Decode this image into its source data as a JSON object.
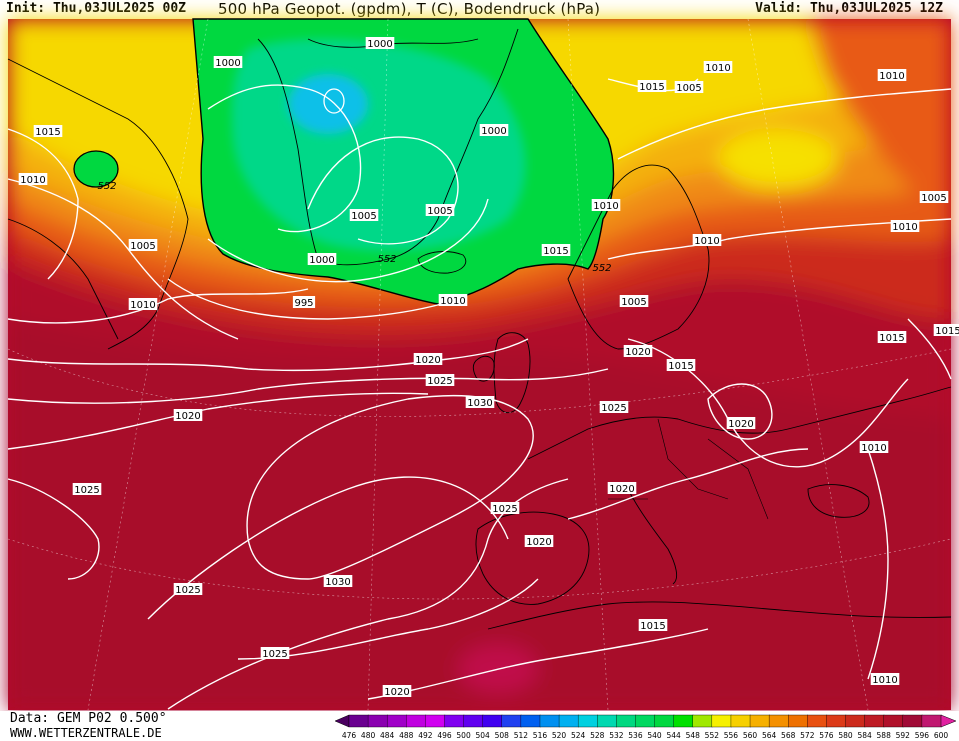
{
  "header": {
    "init": "Init: Thu,03JUL2025 00Z",
    "title": "500 hPa Geopot. (gpdm), T (C), Bodendruck (hPa)",
    "valid": "Valid: Thu,03JUL2025 12Z"
  },
  "footer": {
    "data_source": "Data: GEM P02 0.500°",
    "website": "WWW.WETTERZENTRALE.DE"
  },
  "colors": {
    "high": "#b0102a",
    "deep_high": "#c0104a",
    "mid_red": "#d23b1c",
    "orange": "#e8701a",
    "light_orange": "#f4a012",
    "yellow": "#f6e800",
    "green": "#00d83a",
    "teal": "#00d89a",
    "cyan": "#10c0e0",
    "isobar": "#ffffff",
    "coast": "#000000"
  },
  "colorbar": {
    "ticks": [
      "476",
      "480",
      "484",
      "488",
      "492",
      "496",
      "500",
      "504",
      "508",
      "512",
      "516",
      "520",
      "524",
      "528",
      "532",
      "536",
      "540",
      "544",
      "548",
      "552",
      "556",
      "560",
      "564",
      "568",
      "572",
      "576",
      "580",
      "584",
      "588",
      "592",
      "596",
      "600"
    ],
    "colors": [
      "#4a0060",
      "#6a0090",
      "#8a00b0",
      "#a000c8",
      "#c000e0",
      "#d000f0",
      "#8000f0",
      "#6000f0",
      "#4000f0",
      "#2040f0",
      "#0060f0",
      "#0090f0",
      "#00b0f0",
      "#00d0e0",
      "#00d8b0",
      "#00d880",
      "#00d860",
      "#00d840",
      "#00e000",
      "#a0e800",
      "#f6f000",
      "#f6d000",
      "#f6b000",
      "#f49000",
      "#ee7000",
      "#e85010",
      "#dc3a18",
      "#cc2a1c",
      "#be1a24",
      "#b0102a",
      "#a00a36",
      "#c01870",
      "#e020a0"
    ]
  },
  "pressure_labels": [
    {
      "text": "1000"
    },
    {
      "text": "1000"
    },
    {
      "text": "1000"
    },
    {
      "text": "1000"
    },
    {
      "text": "1005"
    },
    {
      "text": "1005"
    },
    {
      "text": "1005"
    },
    {
      "text": "1005"
    },
    {
      "text": "1005"
    },
    {
      "text": "1005"
    },
    {
      "text": "1010"
    },
    {
      "text": "1010"
    },
    {
      "text": "1010"
    },
    {
      "text": "1010"
    },
    {
      "text": "1010"
    },
    {
      "text": "1010"
    },
    {
      "text": "1010"
    },
    {
      "text": "1010"
    },
    {
      "text": "1010"
    },
    {
      "text": "1010"
    },
    {
      "text": "1015"
    },
    {
      "text": "1015"
    },
    {
      "text": "1015"
    },
    {
      "text": "1015"
    },
    {
      "text": "1015"
    },
    {
      "text": "1015"
    },
    {
      "text": "1015"
    },
    {
      "text": "1020"
    },
    {
      "text": "1020"
    },
    {
      "text": "1020"
    },
    {
      "text": "1020"
    },
    {
      "text": "1020"
    },
    {
      "text": "1020"
    },
    {
      "text": "1020"
    },
    {
      "text": "1025"
    },
    {
      "text": "1025"
    },
    {
      "text": "1025"
    },
    {
      "text": "1025"
    },
    {
      "text": "1025"
    },
    {
      "text": "1025"
    },
    {
      "text": "1030"
    },
    {
      "text": "1030"
    },
    {
      "text": "995"
    }
  ],
  "geopot_labels": [
    {
      "text": "552"
    },
    {
      "text": "552"
    },
    {
      "text": "552"
    }
  ]
}
